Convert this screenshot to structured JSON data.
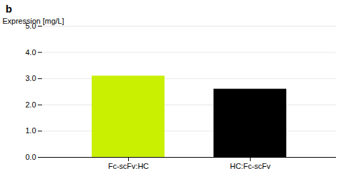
{
  "chart_data": {
    "type": "bar",
    "title": "b",
    "categories": [
      "Fc-scFv:HC",
      "HC:Fc-scFv"
    ],
    "values": [
      3.1,
      2.6
    ],
    "colors": [
      "#c8f000",
      "#000000"
    ],
    "ylabel": "Expression [mg/L]",
    "ylim": [
      0,
      5
    ],
    "yticks": [
      0,
      1,
      2,
      3,
      4,
      5
    ],
    "grid": true
  }
}
